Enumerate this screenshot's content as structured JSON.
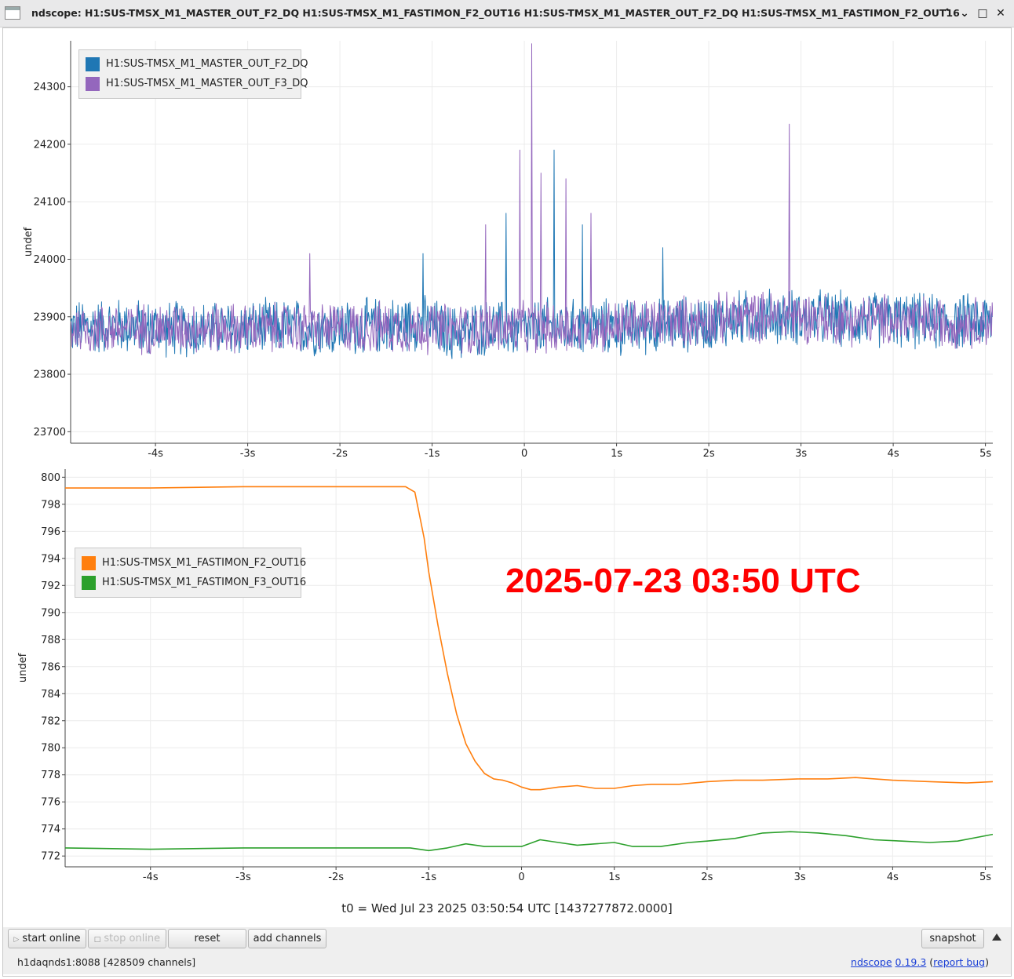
{
  "window": {
    "title": "ndscope: H1:SUS-TMSX_M1_MASTER_OUT_F2_DQ H1:SUS-TMSX_M1_FASTIMON_F2_OUT16 H1:SUS-TMSX_M1_MASTER_OUT_F2_DQ H1:SUS-TMSX_M1_FASTIMON_F2_OUT16",
    "buttons": {
      "minimize": "⌃",
      "restore": "⌄",
      "maximize": "□",
      "close": "✕"
    }
  },
  "annotation": "2025-07-23 03:50 UTC",
  "t0_label": "t0 = Wed Jul 23 2025 03:50:54 UTC [1437277872.0000]",
  "toolbar": {
    "start_online": "start online",
    "stop_online": "stop online",
    "reset": "reset",
    "add_channels": "add channels",
    "snapshot": "snapshot"
  },
  "status": {
    "server": "h1daqnds1:8088  [428509 channels]",
    "app_name": "ndscope",
    "version": "0.19.3",
    "open_paren": "(",
    "report_bug": "report bug",
    "close_paren": ")"
  },
  "chart_data": [
    {
      "type": "line",
      "ylabel": "undef",
      "xlabel": "",
      "ylim": [
        23680,
        24380
      ],
      "xlim": [
        -4.92,
        5.08
      ],
      "yticks": [
        23700,
        23800,
        23900,
        24000,
        24100,
        24200,
        24300
      ],
      "xticks": [
        -4,
        -3,
        -2,
        -1,
        0,
        1,
        2,
        3,
        4,
        5
      ],
      "xtick_labels": [
        "-4s",
        "-3s",
        "-2s",
        "-1s",
        "0",
        "1s",
        "2s",
        "3s",
        "4s",
        "5s"
      ],
      "grid": true,
      "legend_position": "top-left",
      "series": [
        {
          "name": "H1:SUS-TMSX_M1_MASTER_OUT_F2_DQ",
          "color": "#1f77b4",
          "x": [
            -4.92,
            -4.5,
            -4.0,
            -3.5,
            -3.0,
            -2.5,
            -2.0,
            -1.5,
            -1.2,
            -1.0,
            -0.8,
            -0.5,
            -0.3,
            0.0,
            0.1,
            0.3,
            0.5,
            0.7,
            1.0,
            1.5,
            2.0,
            2.5,
            3.0,
            3.5,
            4.0,
            4.5,
            5.08
          ],
          "y": [
            23880,
            23885,
            23880,
            23878,
            23880,
            23882,
            23880,
            23885,
            23890,
            23885,
            23870,
            23880,
            23880,
            23875,
            23880,
            23885,
            23880,
            23885,
            23880,
            23885,
            23890,
            23900,
            23900,
            23895,
            23895,
            23890,
            23892
          ],
          "noise_amplitude": 55,
          "spikes": [
            {
              "x": 0.32,
              "y": 24190
            },
            {
              "x": -0.2,
              "y": 24080
            },
            {
              "x": 0.63,
              "y": 24060
            },
            {
              "x": -1.1,
              "y": 24010
            },
            {
              "x": 1.5,
              "y": 24020
            }
          ]
        },
        {
          "name": "H1:SUS-TMSX_M1_MASTER_OUT_F3_DQ",
          "color": "#9467bd",
          "x": [
            -4.92,
            -4.5,
            -4.0,
            -3.5,
            -3.0,
            -2.5,
            -2.0,
            -1.5,
            -1.0,
            -0.5,
            0.0,
            0.5,
            1.0,
            1.5,
            2.0,
            2.5,
            3.0,
            3.5,
            4.0,
            4.5,
            5.08
          ],
          "y": [
            23880,
            23878,
            23880,
            23882,
            23878,
            23880,
            23880,
            23882,
            23880,
            23878,
            23880,
            23880,
            23885,
            23890,
            23895,
            23900,
            23900,
            23895,
            23895,
            23890,
            23892
          ],
          "noise_amplitude": 50,
          "spikes": [
            {
              "x": 0.08,
              "y": 24375
            },
            {
              "x": -0.05,
              "y": 24190
            },
            {
              "x": 2.87,
              "y": 24235
            },
            {
              "x": 0.18,
              "y": 24150
            },
            {
              "x": 0.45,
              "y": 24140
            },
            {
              "x": 0.72,
              "y": 24080
            },
            {
              "x": -0.42,
              "y": 24060
            },
            {
              "x": -2.33,
              "y": 24010
            }
          ]
        }
      ]
    },
    {
      "type": "line",
      "ylabel": "undef",
      "xlabel": "",
      "ylim": [
        771.2,
        800.6
      ],
      "xlim": [
        -4.92,
        5.08
      ],
      "yticks": [
        772,
        774,
        776,
        778,
        780,
        782,
        784,
        786,
        788,
        790,
        792,
        794,
        796,
        798,
        800
      ],
      "xticks": [
        -4,
        -3,
        -2,
        -1,
        0,
        1,
        2,
        3,
        4,
        5
      ],
      "xtick_labels": [
        "-4s",
        "-3s",
        "-2s",
        "-1s",
        "0",
        "1s",
        "2s",
        "3s",
        "4s",
        "5s"
      ],
      "grid": true,
      "legend_position": "middle-left",
      "series": [
        {
          "name": "H1:SUS-TMSX_M1_FASTIMON_F2_OUT16",
          "color": "#ff7f0e",
          "x": [
            -4.92,
            -4.0,
            -3.0,
            -2.0,
            -1.5,
            -1.25,
            -1.15,
            -1.05,
            -1.0,
            -0.9,
            -0.8,
            -0.7,
            -0.6,
            -0.5,
            -0.4,
            -0.3,
            -0.2,
            -0.1,
            0.0,
            0.1,
            0.2,
            0.4,
            0.6,
            0.8,
            1.0,
            1.2,
            1.4,
            1.7,
            2.0,
            2.3,
            2.6,
            3.0,
            3.3,
            3.6,
            4.0,
            4.4,
            4.8,
            5.08
          ],
          "y": [
            799.2,
            799.2,
            799.3,
            799.3,
            799.3,
            799.3,
            798.9,
            795.5,
            793.0,
            789.0,
            785.5,
            782.5,
            780.3,
            779.0,
            778.1,
            777.7,
            777.6,
            777.4,
            777.1,
            776.9,
            776.9,
            777.1,
            777.2,
            777.0,
            777.0,
            777.2,
            777.3,
            777.3,
            777.5,
            777.6,
            777.6,
            777.7,
            777.7,
            777.8,
            777.6,
            777.5,
            777.4,
            777.5
          ]
        },
        {
          "name": "H1:SUS-TMSX_M1_FASTIMON_F3_OUT16",
          "color": "#2ca02c",
          "x": [
            -4.92,
            -4.0,
            -3.0,
            -2.0,
            -1.5,
            -1.2,
            -1.0,
            -0.8,
            -0.6,
            -0.4,
            -0.2,
            0.0,
            0.2,
            0.4,
            0.6,
            0.8,
            1.0,
            1.2,
            1.5,
            1.8,
            2.0,
            2.3,
            2.6,
            2.9,
            3.2,
            3.5,
            3.8,
            4.1,
            4.4,
            4.7,
            5.08
          ],
          "y": [
            772.6,
            772.5,
            772.6,
            772.6,
            772.6,
            772.6,
            772.4,
            772.6,
            772.9,
            772.7,
            772.7,
            772.7,
            773.2,
            773.0,
            772.8,
            772.9,
            773.0,
            772.7,
            772.7,
            773.0,
            773.1,
            773.3,
            773.7,
            773.8,
            773.7,
            773.5,
            773.2,
            773.1,
            773.0,
            773.1,
            773.6
          ]
        }
      ]
    }
  ]
}
